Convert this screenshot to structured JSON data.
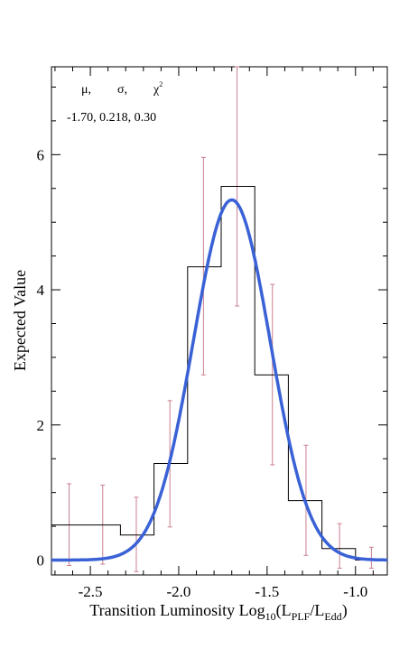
{
  "chart_data": {
    "type": "histogram-with-fit",
    "xlabel_parts": [
      "Transition Luminosity Log",
      "10",
      "(L",
      "PLF",
      "/L",
      "Edd",
      ")"
    ],
    "ylabel": "Expected Value",
    "xlim": [
      -2.72,
      -0.82
    ],
    "ylim": [
      -0.22,
      7.3
    ],
    "x_ticks": [
      -2.5,
      -2.0,
      -1.5,
      -1.0
    ],
    "x_tick_labels": [
      "-2.5",
      "-2.0",
      "-1.5",
      "-1.0"
    ],
    "y_ticks": [
      0,
      2,
      4,
      6
    ],
    "y_tick_labels": [
      "0",
      "2",
      "4",
      "6"
    ],
    "histogram": {
      "bin_edges": [
        -2.72,
        -2.52,
        -2.33,
        -2.14,
        -1.95,
        -1.76,
        -1.57,
        -1.38,
        -1.19,
        -1.0,
        -0.82
      ],
      "values": [
        0.52,
        0.52,
        0.37,
        1.43,
        4.34,
        5.53,
        2.74,
        0.88,
        0.17,
        0.0
      ]
    },
    "error_bars": {
      "x": [
        -2.62,
        -2.43,
        -2.24,
        -2.05,
        -1.86,
        -1.67,
        -1.47,
        -1.28,
        -1.09,
        -0.91
      ],
      "low": [
        -0.08,
        -0.06,
        -0.17,
        0.49,
        2.74,
        3.76,
        1.41,
        0.07,
        -0.12,
        -0.12
      ],
      "high": [
        1.13,
        1.11,
        0.93,
        2.36,
        5.96,
        7.3,
        4.08,
        1.7,
        0.54,
        0.19
      ],
      "color": "#c97f8f"
    },
    "fit": {
      "mu": -1.7,
      "sigma": 0.218,
      "amplitude": 5.33,
      "color": "#3a62d6"
    },
    "annotation": {
      "labels": [
        "μ,",
        "σ,",
        "χ"
      ],
      "chi_superscript": "2",
      "values_line": "-1.70, 0.218, 0.30"
    }
  }
}
